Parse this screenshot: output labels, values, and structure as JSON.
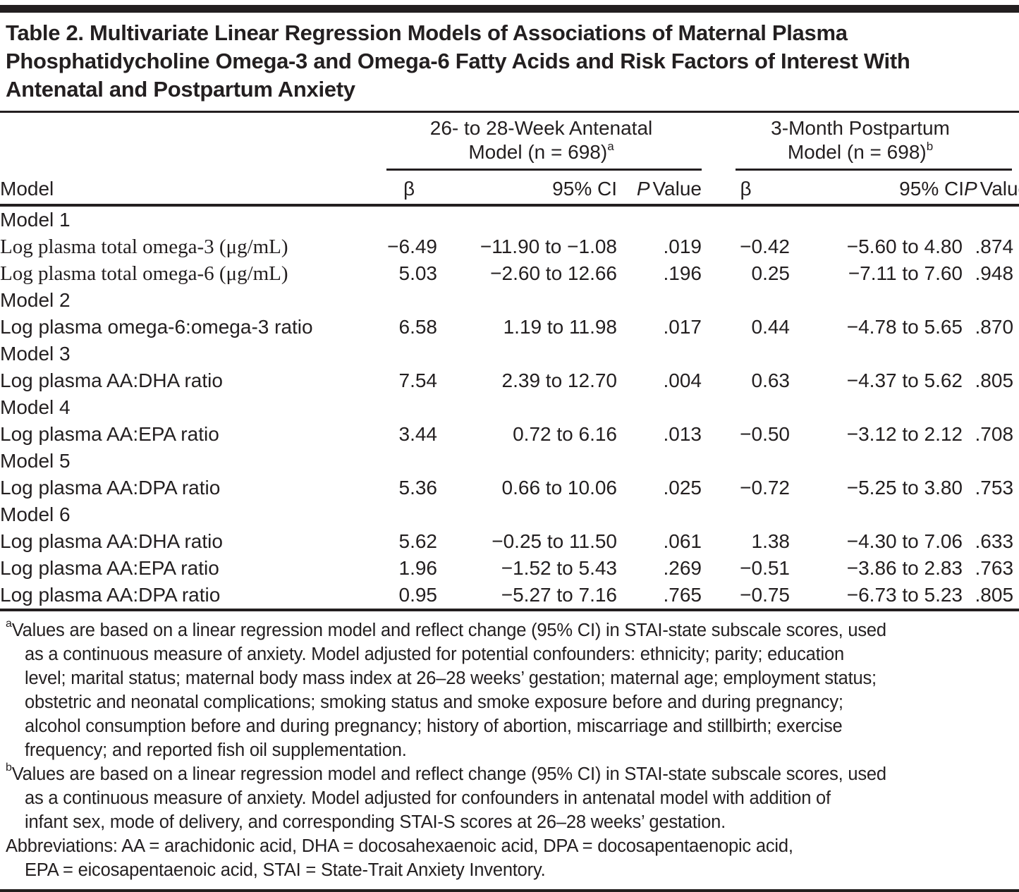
{
  "title": "Table 2. Multivariate Linear Regression Models of Associations of Maternal Plasma\nPhosphatidycholine Omega-3 and Omega-6 Fatty Acids and Risk Factors of Interest With\nAntenatal and Postpartum Anxiety",
  "header": {
    "model_col": "Model",
    "groups": [
      {
        "line1": "26- to 28-Week Antenatal",
        "line2": "Model (n = 698)",
        "sup": "a"
      },
      {
        "line1": "3-Month Postpartum",
        "line2": "Model (n = 698)",
        "sup": "b"
      }
    ],
    "beta": "β",
    "ci": "95% CI",
    "p_italic": "P",
    "p_value": "Value"
  },
  "rows": [
    {
      "type": "group",
      "label": "Model 1"
    },
    {
      "type": "data",
      "serif": true,
      "label": "Log plasma total omega-3 (μg/mL)",
      "cells": [
        "−6.49",
        "−11.90 to −1.08",
        ".019",
        "−0.42",
        "−5.60 to 4.80",
        ".874"
      ],
      "p1_bold": true
    },
    {
      "type": "data",
      "serif": true,
      "label": "Log plasma total omega-6 (μg/mL)",
      "cells": [
        "5.03",
        "−2.60 to 12.66",
        ".196",
        "0.25",
        "−7.11 to 7.60",
        ".948"
      ],
      "p1_bold": false
    },
    {
      "type": "group",
      "label": "Model 2"
    },
    {
      "type": "data",
      "serif": false,
      "label": "Log plasma omega-6:omega-3 ratio",
      "cells": [
        "6.58",
        "1.19 to 11.98",
        ".017",
        "0.44",
        "−4.78 to 5.65",
        ".870"
      ],
      "p1_bold": true
    },
    {
      "type": "group",
      "label": "Model 3"
    },
    {
      "type": "data",
      "serif": false,
      "label": "Log plasma AA:DHA ratio",
      "cells": [
        "7.54",
        "2.39 to 12.70",
        ".004",
        "0.63",
        "−4.37 to 5.62",
        ".805"
      ],
      "p1_bold": true
    },
    {
      "type": "group",
      "label": "Model 4"
    },
    {
      "type": "data",
      "serif": false,
      "label": "Log plasma AA:EPA ratio",
      "cells": [
        "3.44",
        "0.72 to 6.16",
        ".013",
        "−0.50",
        "−3.12 to 2.12",
        ".708"
      ],
      "p1_bold": true
    },
    {
      "type": "group",
      "label": "Model 5"
    },
    {
      "type": "data",
      "serif": false,
      "label": "Log plasma AA:DPA ratio",
      "cells": [
        "5.36",
        "0.66 to 10.06",
        ".025",
        "−0.72",
        "−5.25 to 3.80",
        ".753"
      ],
      "p1_bold": true
    },
    {
      "type": "group",
      "label": "Model 6"
    },
    {
      "type": "data",
      "serif": false,
      "label": "Log plasma AA:DHA ratio",
      "cells": [
        "5.62",
        "−0.25 to 11.50",
        ".061",
        "1.38",
        "−4.30 to 7.06",
        ".633"
      ],
      "p1_bold": false
    },
    {
      "type": "data",
      "serif": false,
      "label": "Log plasma AA:EPA ratio",
      "cells": [
        "1.96",
        "−1.52 to 5.43",
        ".269",
        "−0.51",
        "−3.86 to 2.83",
        ".763"
      ],
      "p1_bold": false
    },
    {
      "type": "data",
      "serif": false,
      "label": "Log plasma AA:DPA ratio",
      "cells": [
        "0.95",
        "−5.27 to 7.16",
        ".765",
        "−0.75",
        "−6.73 to 5.23",
        ".805"
      ],
      "p1_bold": false
    }
  ],
  "footnotes": [
    {
      "sup": "a",
      "text": "Values are based on a linear regression model and reflect change (95% CI) in STAI-state subscale scores, used\nas a continuous measure of anxiety. Model adjusted for potential confounders: ethnicity; parity; education\nlevel; marital status; maternal body mass index at 26–28 weeks’ gestation; maternal age; employment status;\nobstetric and neonatal complications; smoking status and smoke exposure before and during pregnancy;\nalcohol consumption before and during pregnancy; history of abortion, miscarriage and stillbirth; exercise\nfrequency; and reported fish oil supplementation."
    },
    {
      "sup": "b",
      "text": "Values are based on a linear regression model and reflect change (95% CI) in STAI-state subscale scores, used\nas a continuous measure of anxiety. Model adjusted for confounders in antenatal model with addition of\ninfant sex, mode of delivery, and corresponding STAI-S scores at 26–28 weeks’ gestation."
    }
  ],
  "abbreviations": "Abbreviations: AA = arachidonic acid, DHA = docosahexaenoic acid, DPA = docosapentaenopic acid,\nEPA = eicosapentaenoic acid, STAI = State-Trait Anxiety Inventory.",
  "colors": {
    "text": "#231f20",
    "rule": "#231f20"
  }
}
